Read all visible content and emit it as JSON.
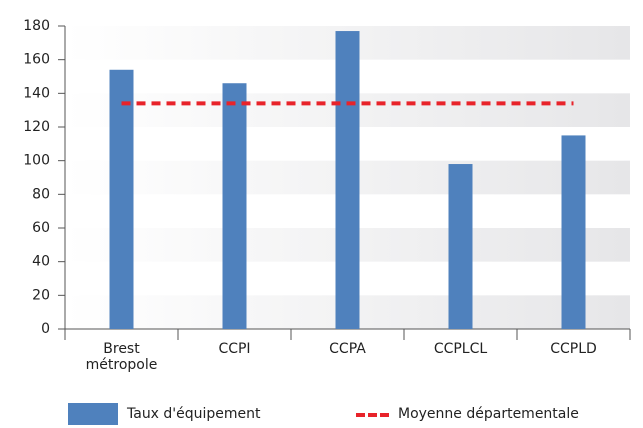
{
  "chart_data": {
    "type": "bar",
    "categories": [
      "Brest métropole",
      "CCPI",
      "CCPA",
      "CCPLCL",
      "CCPLD"
    ],
    "series": [
      {
        "name": "Taux d'équipement",
        "color": "#4f81bd",
        "type": "bar",
        "values": [
          154,
          146,
          177,
          98,
          115
        ]
      },
      {
        "name": "Moyenne départementale",
        "color": "#e8232a",
        "type": "line",
        "values": [
          134,
          134,
          134,
          134,
          134
        ]
      }
    ],
    "ylim": [
      0,
      180
    ],
    "yticks": [
      0,
      20,
      40,
      60,
      80,
      100,
      120,
      140,
      160,
      180
    ],
    "grid": "bands",
    "legend": "bottom"
  }
}
